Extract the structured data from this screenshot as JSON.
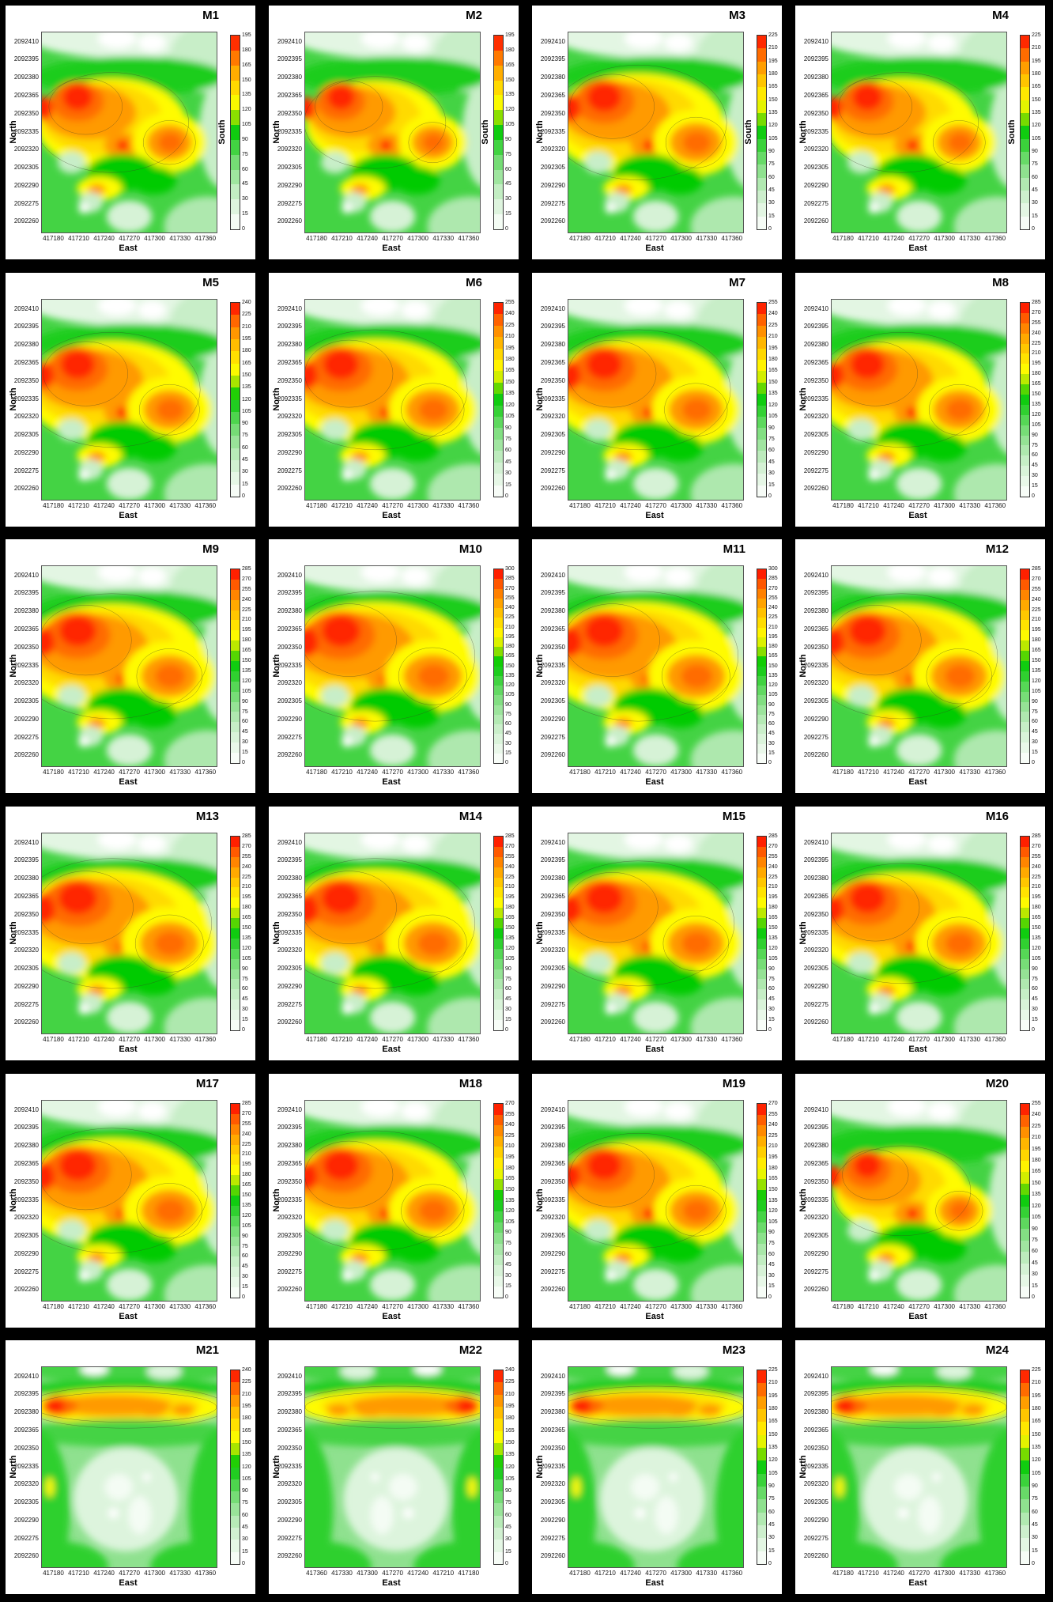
{
  "figure": {
    "background": "#000000",
    "panel_background": "#ffffff",
    "grid": {
      "rows": 6,
      "cols": 4
    },
    "axes": {
      "x_label": "East",
      "y_label": "North",
      "colorbar_side_label": "South",
      "x_ticks": [
        "417180",
        "417210",
        "417240",
        "417270",
        "417300",
        "417330",
        "417360"
      ],
      "y_ticks": [
        "2092410",
        "2092395",
        "2092380",
        "2092365",
        "2092350",
        "2092335",
        "2092320",
        "2092305",
        "2092290",
        "2092275",
        "2092260"
      ]
    },
    "colormap": [
      {
        "t": 0.0,
        "c": "#FFFFFF"
      },
      {
        "t": 0.08,
        "c": "#E9F8E9"
      },
      {
        "t": 0.16,
        "c": "#D0F0D0"
      },
      {
        "t": 0.24,
        "c": "#AEE8AE"
      },
      {
        "t": 0.32,
        "c": "#85DF85"
      },
      {
        "t": 0.4,
        "c": "#53D653"
      },
      {
        "t": 0.47,
        "c": "#20CD20"
      },
      {
        "t": 0.52,
        "c": "#06CB06"
      },
      {
        "t": 0.57,
        "c": "#7FDC00"
      },
      {
        "t": 0.62,
        "c": "#D6EF00"
      },
      {
        "t": 0.66,
        "c": "#FFFB00"
      },
      {
        "t": 0.72,
        "c": "#FFDF00"
      },
      {
        "t": 0.78,
        "c": "#FFBE00"
      },
      {
        "t": 0.84,
        "c": "#FF9A00"
      },
      {
        "t": 0.89,
        "c": "#FF7500"
      },
      {
        "t": 0.94,
        "c": "#FF4A00"
      },
      {
        "t": 1.0,
        "c": "#FF0000"
      }
    ]
  },
  "chart_data": [
    {
      "title": "M1",
      "type": "contour-heatmap",
      "pattern": "central-hotspots",
      "intensity": 1.0,
      "x_tick_order": "normal",
      "colorbar_label": "South",
      "colorbar_min": 0,
      "colorbar_step": 15,
      "colorbar_max": 195,
      "colorbar_ticks": [
        195,
        180,
        165,
        150,
        135,
        120,
        105,
        90,
        75,
        60,
        45,
        30,
        15,
        0
      ]
    },
    {
      "title": "M2",
      "type": "contour-heatmap",
      "pattern": "central-hotspots",
      "intensity": 0.92,
      "x_tick_order": "normal",
      "colorbar_label": "South",
      "colorbar_min": 0,
      "colorbar_step": 15,
      "colorbar_max": 195,
      "colorbar_ticks": [
        195,
        180,
        165,
        150,
        135,
        120,
        105,
        90,
        75,
        60,
        45,
        30,
        15,
        0
      ]
    },
    {
      "title": "M3",
      "type": "contour-heatmap",
      "pattern": "central-hotspots",
      "intensity": 1.15,
      "x_tick_order": "normal",
      "colorbar_label": "South",
      "colorbar_min": 0,
      "colorbar_step": 15,
      "colorbar_max": 225,
      "colorbar_ticks": [
        225,
        210,
        195,
        180,
        165,
        150,
        135,
        120,
        105,
        90,
        75,
        60,
        45,
        30,
        15,
        0
      ]
    },
    {
      "title": "M4",
      "type": "contour-heatmap",
      "pattern": "central-hotspots",
      "intensity": 1.0,
      "x_tick_order": "normal",
      "colorbar_label": "South",
      "colorbar_min": 0,
      "colorbar_step": 15,
      "colorbar_max": 225,
      "colorbar_ticks": [
        225,
        210,
        195,
        180,
        165,
        150,
        135,
        120,
        105,
        90,
        75,
        60,
        45,
        30,
        15,
        0
      ]
    },
    {
      "title": "M5",
      "type": "contour-heatmap",
      "pattern": "central-hotspots",
      "intensity": 1.15,
      "x_tick_order": "normal",
      "colorbar_label": null,
      "colorbar_min": 0,
      "colorbar_step": 15,
      "colorbar_max": 240,
      "colorbar_ticks": [
        240,
        225,
        210,
        195,
        180,
        165,
        150,
        135,
        120,
        105,
        90,
        75,
        60,
        45,
        30,
        15,
        0
      ]
    },
    {
      "title": "M6",
      "type": "contour-heatmap",
      "pattern": "central-hotspots",
      "intensity": 1.2,
      "x_tick_order": "normal",
      "colorbar_label": null,
      "colorbar_min": 0,
      "colorbar_step": 15,
      "colorbar_max": 255,
      "colorbar_ticks": [
        255,
        240,
        225,
        210,
        195,
        180,
        165,
        150,
        135,
        120,
        105,
        90,
        75,
        60,
        45,
        30,
        15,
        0
      ]
    },
    {
      "title": "M7",
      "type": "contour-heatmap",
      "pattern": "central-hotspots",
      "intensity": 1.2,
      "x_tick_order": "normal",
      "colorbar_label": null,
      "colorbar_min": 0,
      "colorbar_step": 15,
      "colorbar_max": 255,
      "colorbar_ticks": [
        255,
        240,
        225,
        210,
        195,
        180,
        165,
        150,
        135,
        120,
        105,
        90,
        75,
        60,
        45,
        30,
        15,
        0
      ]
    },
    {
      "title": "M8",
      "type": "contour-heatmap",
      "pattern": "central-hotspots",
      "intensity": 1.15,
      "x_tick_order": "normal",
      "colorbar_label": null,
      "colorbar_min": 0,
      "colorbar_step": 15,
      "colorbar_max": 285,
      "colorbar_ticks": [
        285,
        270,
        255,
        240,
        225,
        210,
        195,
        180,
        165,
        150,
        135,
        120,
        105,
        90,
        75,
        60,
        45,
        30,
        15,
        0
      ]
    },
    {
      "title": "M9",
      "type": "contour-heatmap",
      "pattern": "central-hotspots",
      "intensity": 1.25,
      "x_tick_order": "normal",
      "colorbar_label": null,
      "colorbar_min": 0,
      "colorbar_step": 15,
      "colorbar_max": 285,
      "colorbar_ticks": [
        285,
        270,
        255,
        240,
        225,
        210,
        195,
        180,
        165,
        150,
        135,
        120,
        105,
        90,
        75,
        60,
        45,
        30,
        15,
        0
      ]
    },
    {
      "title": "M10",
      "type": "contour-heatmap",
      "pattern": "central-hotspots",
      "intensity": 1.3,
      "x_tick_order": "normal",
      "colorbar_label": null,
      "colorbar_min": 0,
      "colorbar_step": 15,
      "colorbar_max": 300,
      "colorbar_ticks": [
        300,
        285,
        270,
        255,
        240,
        225,
        210,
        195,
        180,
        165,
        150,
        135,
        120,
        105,
        90,
        75,
        60,
        45,
        30,
        15,
        0
      ]
    },
    {
      "title": "M11",
      "type": "contour-heatmap",
      "pattern": "central-hotspots",
      "intensity": 1.3,
      "x_tick_order": "normal",
      "colorbar_label": null,
      "colorbar_min": 0,
      "colorbar_step": 15,
      "colorbar_max": 300,
      "colorbar_ticks": [
        300,
        285,
        270,
        255,
        240,
        225,
        210,
        195,
        180,
        165,
        150,
        135,
        120,
        105,
        90,
        75,
        60,
        45,
        30,
        15,
        0
      ]
    },
    {
      "title": "M12",
      "type": "contour-heatmap",
      "pattern": "central-hotspots",
      "intensity": 1.25,
      "x_tick_order": "normal",
      "colorbar_label": null,
      "colorbar_min": 0,
      "colorbar_step": 15,
      "colorbar_max": 285,
      "colorbar_ticks": [
        285,
        270,
        255,
        240,
        225,
        210,
        195,
        180,
        165,
        150,
        135,
        120,
        105,
        90,
        75,
        60,
        45,
        30,
        15,
        0
      ]
    },
    {
      "title": "M13",
      "type": "contour-heatmap",
      "pattern": "central-hotspots",
      "intensity": 1.3,
      "x_tick_order": "normal",
      "colorbar_label": null,
      "colorbar_min": 0,
      "colorbar_step": 15,
      "colorbar_max": 285,
      "colorbar_ticks": [
        285,
        270,
        255,
        240,
        225,
        210,
        195,
        180,
        165,
        150,
        135,
        120,
        105,
        90,
        75,
        60,
        45,
        30,
        15,
        0
      ]
    },
    {
      "title": "M14",
      "type": "contour-heatmap",
      "pattern": "central-hotspots",
      "intensity": 1.3,
      "x_tick_order": "normal",
      "colorbar_label": null,
      "colorbar_min": 0,
      "colorbar_step": 15,
      "colorbar_max": 285,
      "colorbar_ticks": [
        285,
        270,
        255,
        240,
        225,
        210,
        195,
        180,
        165,
        150,
        135,
        120,
        105,
        90,
        75,
        60,
        45,
        30,
        15,
        0
      ]
    },
    {
      "title": "M15",
      "type": "contour-heatmap",
      "pattern": "central-hotspots",
      "intensity": 1.25,
      "x_tick_order": "normal",
      "colorbar_label": null,
      "colorbar_min": 0,
      "colorbar_step": 15,
      "colorbar_max": 285,
      "colorbar_ticks": [
        285,
        270,
        255,
        240,
        225,
        210,
        195,
        180,
        165,
        150,
        135,
        120,
        105,
        90,
        75,
        60,
        45,
        30,
        15,
        0
      ]
    },
    {
      "title": "M16",
      "type": "contour-heatmap",
      "pattern": "central-hotspots",
      "intensity": 1.2,
      "x_tick_order": "normal",
      "colorbar_label": null,
      "colorbar_min": 0,
      "colorbar_step": 15,
      "colorbar_max": 285,
      "colorbar_ticks": [
        285,
        270,
        255,
        240,
        225,
        210,
        195,
        180,
        165,
        150,
        135,
        120,
        105,
        90,
        75,
        60,
        45,
        30,
        15,
        0
      ]
    },
    {
      "title": "M17",
      "type": "contour-heatmap",
      "pattern": "central-hotspots",
      "intensity": 1.25,
      "x_tick_order": "normal",
      "colorbar_label": null,
      "colorbar_min": 0,
      "colorbar_step": 15,
      "colorbar_max": 285,
      "colorbar_ticks": [
        285,
        270,
        255,
        240,
        225,
        210,
        195,
        180,
        165,
        150,
        135,
        120,
        105,
        90,
        75,
        60,
        45,
        30,
        15,
        0
      ]
    },
    {
      "title": "M18",
      "type": "contour-heatmap",
      "pattern": "central-hotspots",
      "intensity": 1.2,
      "x_tick_order": "normal",
      "colorbar_label": null,
      "colorbar_min": 0,
      "colorbar_step": 15,
      "colorbar_max": 270,
      "colorbar_ticks": [
        270,
        255,
        240,
        225,
        210,
        195,
        180,
        165,
        150,
        135,
        120,
        105,
        90,
        75,
        60,
        45,
        30,
        15,
        0
      ]
    },
    {
      "title": "M19",
      "type": "contour-heatmap",
      "pattern": "central-hotspots",
      "intensity": 1.15,
      "x_tick_order": "normal",
      "colorbar_label": null,
      "colorbar_min": 0,
      "colorbar_step": 15,
      "colorbar_max": 270,
      "colorbar_ticks": [
        270,
        255,
        240,
        225,
        210,
        195,
        180,
        165,
        150,
        135,
        120,
        105,
        90,
        75,
        60,
        45,
        30,
        15,
        0
      ]
    },
    {
      "title": "M20",
      "type": "contour-heatmap",
      "pattern": "central-hotspots",
      "intensity": 0.9,
      "x_tick_order": "normal",
      "colorbar_label": null,
      "colorbar_min": 0,
      "colorbar_step": 15,
      "colorbar_max": 255,
      "colorbar_ticks": [
        255,
        240,
        225,
        210,
        195,
        180,
        165,
        150,
        135,
        120,
        105,
        90,
        75,
        60,
        45,
        30,
        15,
        0
      ]
    },
    {
      "title": "M21",
      "type": "contour-heatmap",
      "pattern": "top-band",
      "intensity": 1.0,
      "x_tick_order": "normal",
      "colorbar_label": null,
      "colorbar_min": 0,
      "colorbar_step": 15,
      "colorbar_max": 240,
      "colorbar_ticks": [
        240,
        225,
        210,
        195,
        180,
        165,
        150,
        135,
        120,
        105,
        90,
        75,
        60,
        45,
        30,
        15,
        0
      ]
    },
    {
      "title": "M22",
      "type": "contour-heatmap",
      "pattern": "top-band",
      "intensity": 1.0,
      "x_tick_order": "reversed",
      "colorbar_label": null,
      "colorbar_min": 0,
      "colorbar_step": 15,
      "colorbar_max": 240,
      "colorbar_ticks": [
        240,
        225,
        210,
        195,
        180,
        165,
        150,
        135,
        120,
        105,
        90,
        75,
        60,
        45,
        30,
        15,
        0
      ]
    },
    {
      "title": "M23",
      "type": "contour-heatmap",
      "pattern": "top-band",
      "intensity": 1.0,
      "x_tick_order": "normal",
      "colorbar_label": null,
      "colorbar_min": 0,
      "colorbar_step": 15,
      "colorbar_max": 225,
      "colorbar_ticks": [
        225,
        210,
        195,
        180,
        165,
        150,
        135,
        120,
        105,
        90,
        75,
        60,
        45,
        30,
        15,
        0
      ]
    },
    {
      "title": "M24",
      "type": "contour-heatmap",
      "pattern": "top-band",
      "intensity": 1.0,
      "x_tick_order": "normal",
      "colorbar_label": null,
      "colorbar_min": 0,
      "colorbar_step": 15,
      "colorbar_max": 225,
      "colorbar_ticks": [
        225,
        210,
        195,
        180,
        165,
        150,
        135,
        120,
        105,
        90,
        75,
        60,
        45,
        30,
        15,
        0
      ]
    }
  ]
}
